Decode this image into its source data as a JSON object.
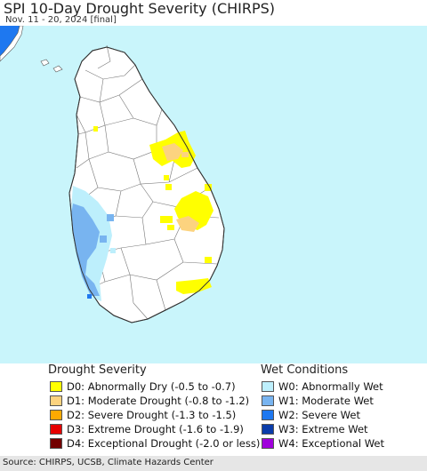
{
  "header": {
    "title": "SPI 10-Day Drought Severity (CHIRPS)",
    "subtitle": "Nov. 11 - 20, 2024 [final]"
  },
  "map": {
    "region": "Sri Lanka",
    "ocean_color": "#c9f5fb",
    "land_color": "#ffffff",
    "border_color": "#555555"
  },
  "legend": {
    "drought": {
      "title": "Drought Severity",
      "items": [
        {
          "label": "D0: Abnormally Dry (-0.5 to -0.7)",
          "color": "#ffff00"
        },
        {
          "label": "D1: Moderate Drought (-0.8 to -1.2)",
          "color": "#fcd37f"
        },
        {
          "label": "D2: Severe Drought (-1.3 to -1.5)",
          "color": "#ffaa00"
        },
        {
          "label": "D3: Extreme Drought (-1.6 to -1.9)",
          "color": "#e60000"
        },
        {
          "label": "D4: Exceptional Drought (-2.0 or less)",
          "color": "#730000"
        }
      ]
    },
    "wet": {
      "title": "Wet Conditions",
      "items": [
        {
          "label": "W0: Abnormally Wet",
          "color": "#bdeffc"
        },
        {
          "label": "W1: Moderate Wet",
          "color": "#78b4f0"
        },
        {
          "label": "W2: Severe Wet",
          "color": "#1e78f0"
        },
        {
          "label": "W3: Extreme Wet",
          "color": "#0a3caa"
        },
        {
          "label": "W4: Exceptional Wet",
          "color": "#a000dc"
        }
      ]
    }
  },
  "footer": {
    "source": "Source: CHIRPS, UCSB, Climate Hazards Center"
  }
}
